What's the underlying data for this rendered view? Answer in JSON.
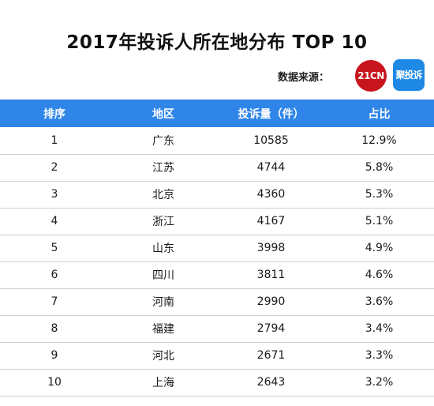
{
  "title": "2017年投诉人所在地分布 TOP 10",
  "source": {
    "label": "数据来源：",
    "logos": [
      {
        "text": "21CN",
        "color": "#c8151d"
      },
      {
        "text": "聚投诉",
        "color": "#1e88e5"
      }
    ]
  },
  "table": {
    "headers": [
      "排序",
      "地区",
      "投诉量（件）",
      "占比"
    ],
    "header_color": "#2f86e8",
    "rows": [
      [
        "1",
        "广东",
        "10585",
        "12.9%"
      ],
      [
        "2",
        "江苏",
        "4744",
        "5.8%"
      ],
      [
        "3",
        "北京",
        "4360",
        "5.3%"
      ],
      [
        "4",
        "浙江",
        "4167",
        "5.1%"
      ],
      [
        "5",
        "山东",
        "3998",
        "4.9%"
      ],
      [
        "6",
        "四川",
        "3811",
        "4.6%"
      ],
      [
        "7",
        "河南",
        "2990",
        "3.6%"
      ],
      [
        "8",
        "福建",
        "2794",
        "3.4%"
      ],
      [
        "9",
        "河北",
        "2671",
        "3.3%"
      ],
      [
        "10",
        "上海",
        "2643",
        "3.2%"
      ]
    ]
  }
}
